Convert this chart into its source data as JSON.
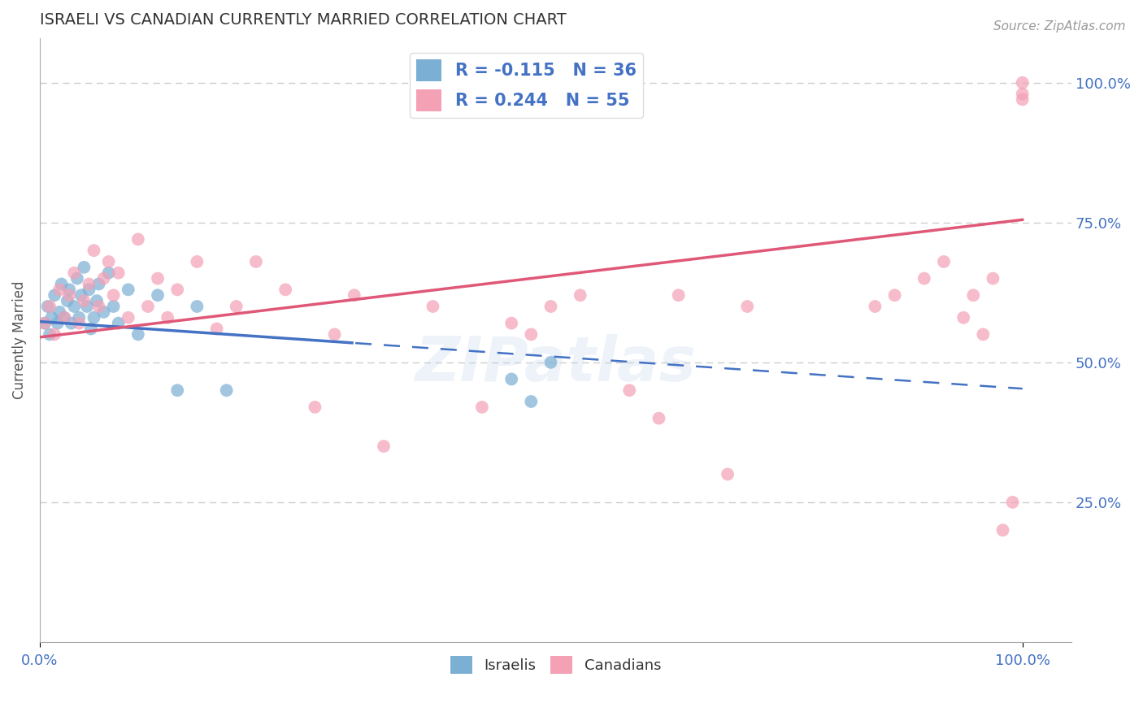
{
  "title": "ISRAELI VS CANADIAN CURRENTLY MARRIED CORRELATION CHART",
  "source": "Source: ZipAtlas.com",
  "ylabel": "Currently Married",
  "legend_blue_label": "R = -0.115   N = 36",
  "legend_pink_label": "R = 0.244   N = 55",
  "israelis_x": [
    0.005,
    0.008,
    0.01,
    0.012,
    0.015,
    0.018,
    0.02,
    0.022,
    0.025,
    0.028,
    0.03,
    0.032,
    0.035,
    0.038,
    0.04,
    0.042,
    0.045,
    0.048,
    0.05,
    0.052,
    0.055,
    0.058,
    0.06,
    0.065,
    0.07,
    0.075,
    0.08,
    0.09,
    0.1,
    0.12,
    0.14,
    0.16,
    0.19,
    0.48,
    0.5,
    0.52
  ],
  "israelis_y": [
    0.57,
    0.6,
    0.55,
    0.58,
    0.62,
    0.57,
    0.59,
    0.64,
    0.58,
    0.61,
    0.63,
    0.57,
    0.6,
    0.65,
    0.58,
    0.62,
    0.67,
    0.6,
    0.63,
    0.56,
    0.58,
    0.61,
    0.64,
    0.59,
    0.66,
    0.6,
    0.57,
    0.63,
    0.55,
    0.62,
    0.45,
    0.6,
    0.45,
    0.47,
    0.43,
    0.5
  ],
  "canadians_x": [
    0.005,
    0.01,
    0.015,
    0.02,
    0.025,
    0.03,
    0.035,
    0.04,
    0.045,
    0.05,
    0.055,
    0.06,
    0.065,
    0.07,
    0.075,
    0.08,
    0.09,
    0.1,
    0.11,
    0.12,
    0.13,
    0.14,
    0.16,
    0.18,
    0.2,
    0.22,
    0.25,
    0.28,
    0.3,
    0.32,
    0.35,
    0.4,
    0.45,
    0.48,
    0.5,
    0.52,
    0.55,
    0.6,
    0.63,
    0.65,
    0.7,
    0.72,
    0.85,
    0.87,
    0.9,
    0.92,
    0.94,
    0.95,
    0.96,
    0.97,
    0.98,
    0.99,
    1.0,
    1.0,
    1.0
  ],
  "canadians_y": [
    0.57,
    0.6,
    0.55,
    0.63,
    0.58,
    0.62,
    0.66,
    0.57,
    0.61,
    0.64,
    0.7,
    0.6,
    0.65,
    0.68,
    0.62,
    0.66,
    0.58,
    0.72,
    0.6,
    0.65,
    0.58,
    0.63,
    0.68,
    0.56,
    0.6,
    0.68,
    0.63,
    0.42,
    0.55,
    0.62,
    0.35,
    0.6,
    0.42,
    0.57,
    0.55,
    0.6,
    0.62,
    0.45,
    0.4,
    0.62,
    0.3,
    0.6,
    0.6,
    0.62,
    0.65,
    0.68,
    0.58,
    0.62,
    0.55,
    0.65,
    0.2,
    0.25,
    0.97,
    1.0,
    0.98
  ],
  "blue_color": "#7bafd4",
  "pink_color": "#f4a0b5",
  "blue_line_color": "#4472c4",
  "pink_line_color": "#e05878",
  "title_color": "#333333",
  "tick_label_color": "#4472c4",
  "grid_color": "#cccccc",
  "background_color": "#ffffff",
  "isr_line_x0": 0.0,
  "isr_line_y0": 0.573,
  "isr_line_x1": 1.0,
  "isr_line_y1": 0.453,
  "can_line_x0": 0.0,
  "can_line_y0": 0.545,
  "can_line_x1": 1.0,
  "can_line_y1": 0.755,
  "solid_split": 0.32,
  "ylim_low": 0.0,
  "ylim_high": 1.08,
  "xlim_low": 0.0,
  "xlim_high": 1.05
}
